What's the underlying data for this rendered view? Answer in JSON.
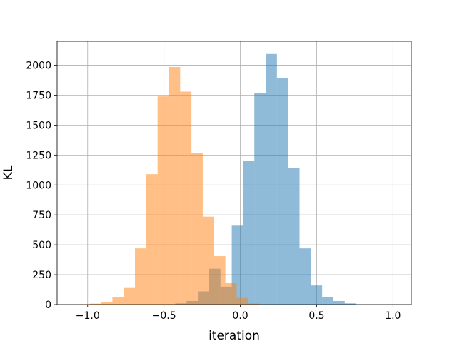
{
  "chart_data": {
    "type": "histogram",
    "title": "",
    "xlabel": "iteration",
    "ylabel": "KL",
    "xlim": [
      -1.2,
      1.12
    ],
    "ylim": [
      0,
      2200
    ],
    "x_ticks": [
      -1.0,
      -0.5,
      0.0,
      0.5,
      1.0
    ],
    "x_tick_labels": [
      "−1.0",
      "−0.5",
      "0.0",
      "0.5",
      "1.0"
    ],
    "y_ticks": [
      0,
      250,
      500,
      750,
      1000,
      1250,
      1500,
      1750,
      2000
    ],
    "y_tick_labels": [
      "0",
      "250",
      "500",
      "750",
      "1000",
      "1250",
      "1500",
      "1750",
      "2000"
    ],
    "grid": true,
    "series": [
      {
        "color": "#1f77b4",
        "opacity": 0.5,
        "bin_edges": [
          -0.5,
          -0.426,
          -0.352,
          -0.278,
          -0.204,
          -0.13,
          -0.056,
          0.018,
          0.092,
          0.166,
          0.24,
          0.314,
          0.388,
          0.462,
          0.536,
          0.61,
          0.684,
          0.758
        ],
        "counts": [
          3,
          10,
          30,
          110,
          300,
          150,
          660,
          1200,
          1770,
          2100,
          1890,
          1140,
          470,
          160,
          65,
          30,
          10
        ]
      },
      {
        "color": "#ff7f0e",
        "opacity": 0.5,
        "bin_edges": [
          -1.06,
          -0.986,
          -0.912,
          -0.838,
          -0.764,
          -0.69,
          -0.616,
          -0.542,
          -0.468,
          -0.394,
          -0.32,
          -0.246,
          -0.172,
          -0.098,
          -0.024,
          0.05,
          0.124
        ],
        "counts": [
          3,
          8,
          20,
          60,
          145,
          470,
          1090,
          1740,
          1985,
          1780,
          1265,
          735,
          405,
          180,
          55,
          10
        ]
      }
    ]
  }
}
